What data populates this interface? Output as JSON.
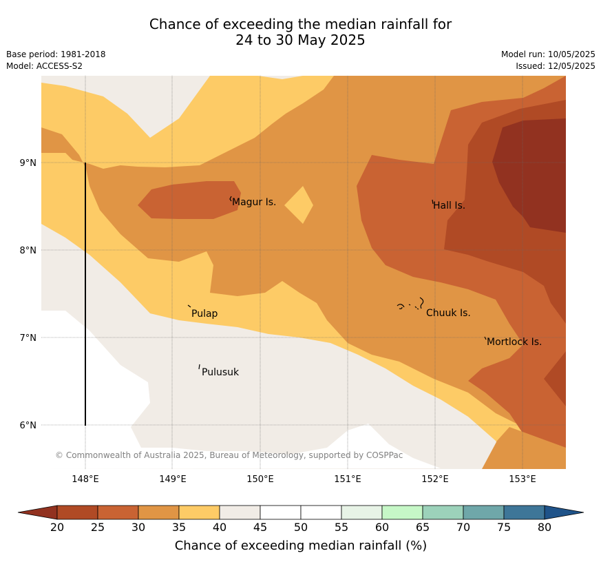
{
  "title": {
    "line1": "Chance of exceeding the median rainfall for",
    "line2": "24 to 30 May 2025"
  },
  "meta": {
    "base_period": "Base period: 1981-2018",
    "model": "Model: ACCESS-S2",
    "model_run": "Model run: 10/05/2025",
    "issued": "Issued: 12/05/2025"
  },
  "map": {
    "lat_ticks": [
      "9°N",
      "8°N",
      "7°N",
      "6°N"
    ],
    "lon_ticks": [
      "148°E",
      "149°E",
      "150°E",
      "151°E",
      "152°E",
      "153°E"
    ],
    "places": [
      "Magur Is.",
      "Hall Is.",
      "Pulap",
      "Chuuk Is.",
      "Mortlock Is.",
      "Pulusuk"
    ],
    "copyright": "© Commonwealth of Australia 2025, Bureau of Meteorology, supported by COSPPac"
  },
  "colorbar": {
    "title": "Chance of exceeding median rainfall (%)",
    "ticks": [
      "20",
      "25",
      "30",
      "35",
      "40",
      "45",
      "50",
      "55",
      "60",
      "65",
      "70",
      "75",
      "80"
    ],
    "colors": [
      "#b04a25",
      "#c96333",
      "#e09545",
      "#fdcb66",
      "#f1ece6",
      "#ffffff",
      "#ffffff",
      "#e7f3e6",
      "#c6f7c7",
      "#9cd2ba",
      "#6fa7a9",
      "#3e7698"
    ],
    "under_color": "#923220",
    "over_color": "#1f5389"
  }
}
